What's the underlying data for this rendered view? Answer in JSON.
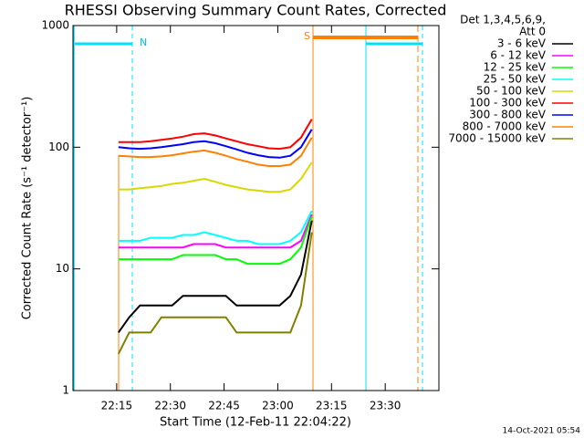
{
  "chart_data": {
    "type": "line",
    "title": "RHESSI Observing Summary Count Rates, Corrected",
    "legend_title": [
      "Det 1,3,4,5,6,9,",
      "Att 0"
    ],
    "xlabel": "Start Time (12-Feb-11 22:04:22)",
    "ylabel": "Corrected Count Rate (s⁻¹ detector⁻¹)",
    "footer": "14-Oct-2021 05:54",
    "markers": [
      "N",
      "S"
    ],
    "log_y": true,
    "ylim": [
      1,
      1000
    ],
    "yticks": [
      1,
      10,
      100,
      1000
    ],
    "xlim": [
      1322.8,
      1425
    ],
    "xticks": [
      {
        "value": 1335,
        "label": "22:15"
      },
      {
        "value": 1350,
        "label": "22:30"
      },
      {
        "value": 1365,
        "label": "22:45"
      },
      {
        "value": 1380,
        "label": "23:00"
      },
      {
        "value": 1395,
        "label": "23:15"
      },
      {
        "value": 1410,
        "label": "23:30"
      }
    ],
    "x": [
      1335.5,
      1338.5,
      1341.5,
      1344.5,
      1347.5,
      1350.5,
      1353.5,
      1356.5,
      1359.5,
      1362.5,
      1365.5,
      1368.5,
      1371.5,
      1374.5,
      1377.5,
      1380.5,
      1383.5,
      1386.5,
      1389.5
    ],
    "series": [
      {
        "name": "3 - 6 keV",
        "color": "#000000",
        "values": [
          3,
          4,
          5,
          5,
          5,
          5,
          6,
          6,
          6,
          6,
          6,
          5,
          5,
          5,
          5,
          5,
          6,
          9,
          25
        ]
      },
      {
        "name": "6 - 12 keV",
        "color": "#ff00ff",
        "values": [
          15,
          15,
          15,
          15,
          15,
          15,
          15,
          16,
          16,
          16,
          15,
          15,
          15,
          15,
          15,
          15,
          15,
          17,
          28
        ]
      },
      {
        "name": "12 - 25 keV",
        "color": "#00ff00",
        "values": [
          12,
          12,
          12,
          12,
          12,
          12,
          13,
          13,
          13,
          13,
          12,
          12,
          11,
          11,
          11,
          11,
          12,
          15,
          27
        ]
      },
      {
        "name": "25 - 50 keV",
        "color": "#00ffff",
        "values": [
          17,
          17,
          17,
          18,
          18,
          18,
          19,
          19,
          20,
          19,
          18,
          17,
          17,
          16,
          16,
          16,
          17,
          20,
          30
        ]
      },
      {
        "name": "50 - 100 keV",
        "color": "#d8d800",
        "values": [
          45,
          45,
          46,
          47,
          48,
          50,
          51,
          53,
          55,
          52,
          49,
          47,
          45,
          44,
          43,
          43,
          45,
          55,
          75
        ]
      },
      {
        "name": "100 - 300 keV",
        "color": "#ff0000",
        "values": [
          110,
          110,
          110,
          112,
          115,
          118,
          122,
          128,
          130,
          125,
          118,
          112,
          106,
          102,
          98,
          97,
          100,
          120,
          170
        ]
      },
      {
        "name": "300 - 800 keV",
        "color": "#0000ff",
        "values": [
          100,
          98,
          97,
          98,
          100,
          103,
          106,
          110,
          112,
          108,
          102,
          96,
          90,
          86,
          83,
          82,
          85,
          100,
          140
        ]
      },
      {
        "name": "800 - 7000 keV",
        "color": "#ff8000",
        "values": [
          85,
          84,
          83,
          83,
          84,
          86,
          89,
          92,
          94,
          90,
          85,
          80,
          76,
          72,
          70,
          70,
          72,
          85,
          120
        ]
      },
      {
        "name": "7000 - 15000 keV",
        "color": "#808000",
        "values": [
          2,
          3,
          3,
          3,
          4,
          4,
          4,
          4,
          4,
          4,
          4,
          3,
          3,
          3,
          3,
          3,
          3,
          5,
          20
        ]
      }
    ]
  }
}
